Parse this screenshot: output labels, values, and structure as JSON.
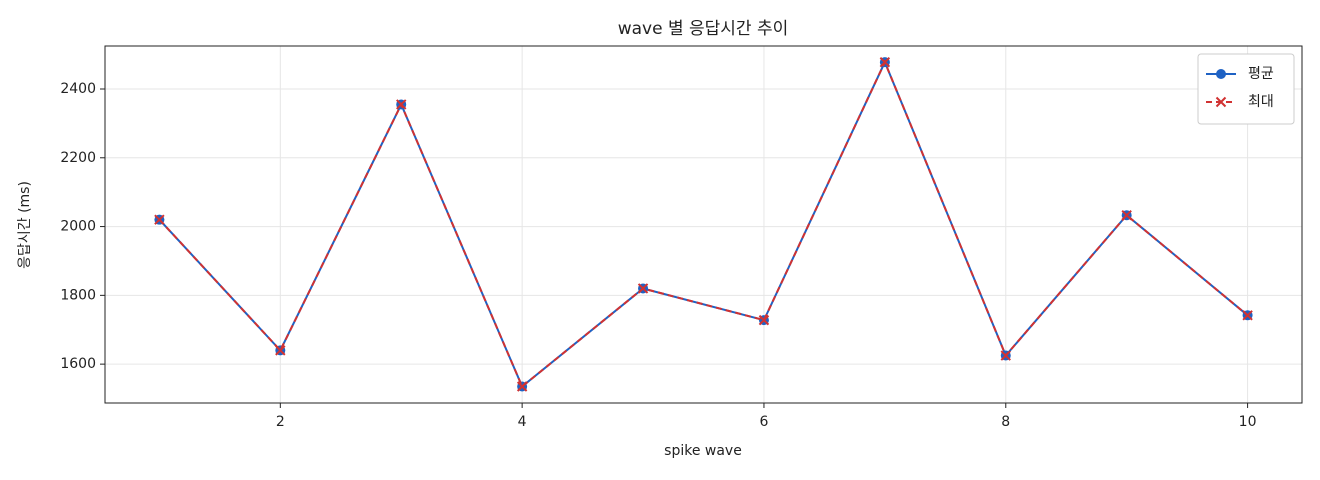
{
  "chart_data": {
    "type": "line",
    "title": "wave 별 응답시간 추이",
    "x_label": "spike wave",
    "y_label": "응답시간 (ms)",
    "x": [
      1,
      2,
      3,
      4,
      5,
      6,
      7,
      8,
      9,
      10
    ],
    "series": [
      {
        "name": "평균",
        "color": "#1f62c4",
        "linestyle": "solid",
        "marker": "o",
        "values": [
          2020,
          1640,
          2355,
          1535,
          1820,
          1728,
          2478,
          1625,
          2033,
          1742
        ]
      },
      {
        "name": "최대",
        "color": "#d13232",
        "linestyle": "dashed",
        "marker": "x",
        "values": [
          2020,
          1640,
          2355,
          1535,
          1820,
          1728,
          2478,
          1625,
          2033,
          1742
        ]
      }
    ],
    "xlim": [
      0.55,
      10.45
    ],
    "xticks": [
      2,
      4,
      6,
      8,
      10
    ],
    "ylim": [
      1487,
      2525
    ],
    "yticks": [
      1600,
      1800,
      2000,
      2200,
      2400
    ],
    "grid": true,
    "legend": "upper right"
  }
}
